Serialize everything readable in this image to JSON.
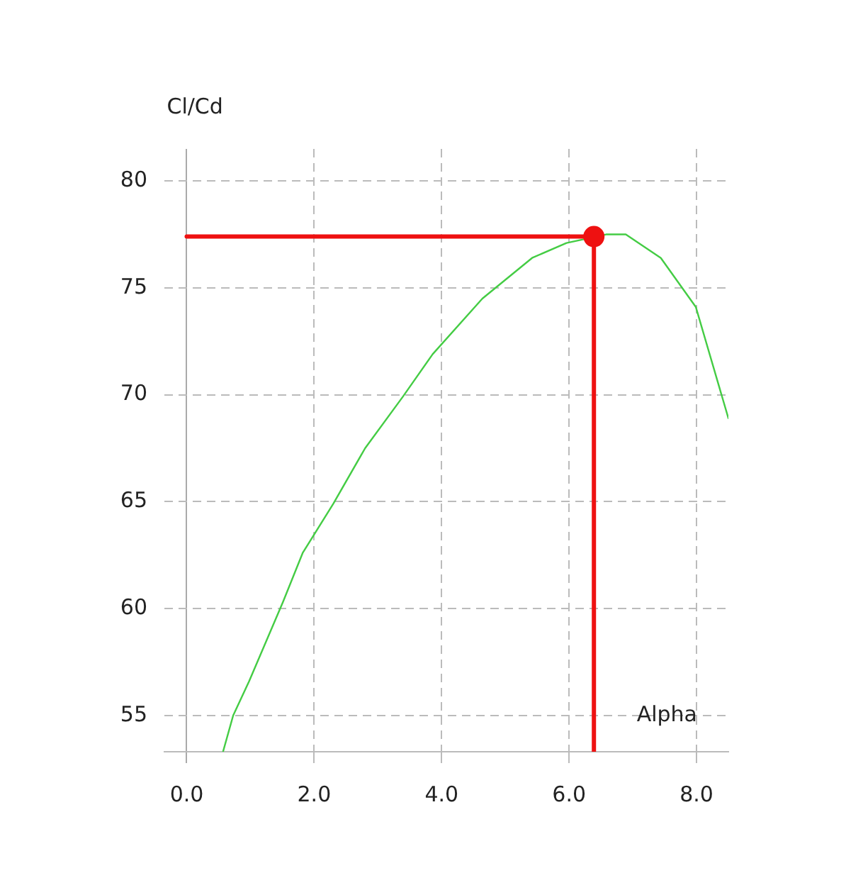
{
  "chart_data": {
    "type": "line",
    "xlabel": "Alpha",
    "ylabel": "Cl/Cd",
    "xlim": [
      -0.35,
      8.5
    ],
    "ylim": [
      53.3,
      81.5
    ],
    "xticks": [
      {
        "value": 0,
        "label": "0.0"
      },
      {
        "value": 2,
        "label": "2.0"
      },
      {
        "value": 4,
        "label": "4.0"
      },
      {
        "value": 6,
        "label": "6.0"
      },
      {
        "value": 8,
        "label": "8.0"
      }
    ],
    "yticks": [
      55,
      60,
      65,
      70,
      75,
      80
    ],
    "grid": true,
    "legend": false,
    "line_style": "solid",
    "series": [
      {
        "type": "line",
        "color": "#44cc44",
        "marker": "none",
        "x": [
          0.57,
          0.73,
          0.98,
          1.51,
          1.82,
          2.3,
          2.8,
          3.39,
          3.86,
          4.64,
          5.42,
          5.96,
          6.58,
          6.89,
          7.44,
          7.99,
          8.5
        ],
        "values": [
          53.3,
          55,
          56.6,
          60.3,
          62.6,
          64.9,
          67.5,
          69.9,
          71.9,
          74.5,
          76.4,
          77.1,
          77.5,
          77.5,
          76.4,
          74.1,
          68.9
        ]
      },
      {
        "type": "line",
        "color": "#ee1111",
        "marker": "none",
        "x": [
          0,
          6.39,
          6.39
        ],
        "values": [
          77.4,
          77.4,
          53.3
        ]
      },
      {
        "type": "scatter",
        "color": "#ee1111",
        "marker": "circle",
        "x": [
          6.39
        ],
        "values": [
          77.4
        ]
      }
    ]
  }
}
